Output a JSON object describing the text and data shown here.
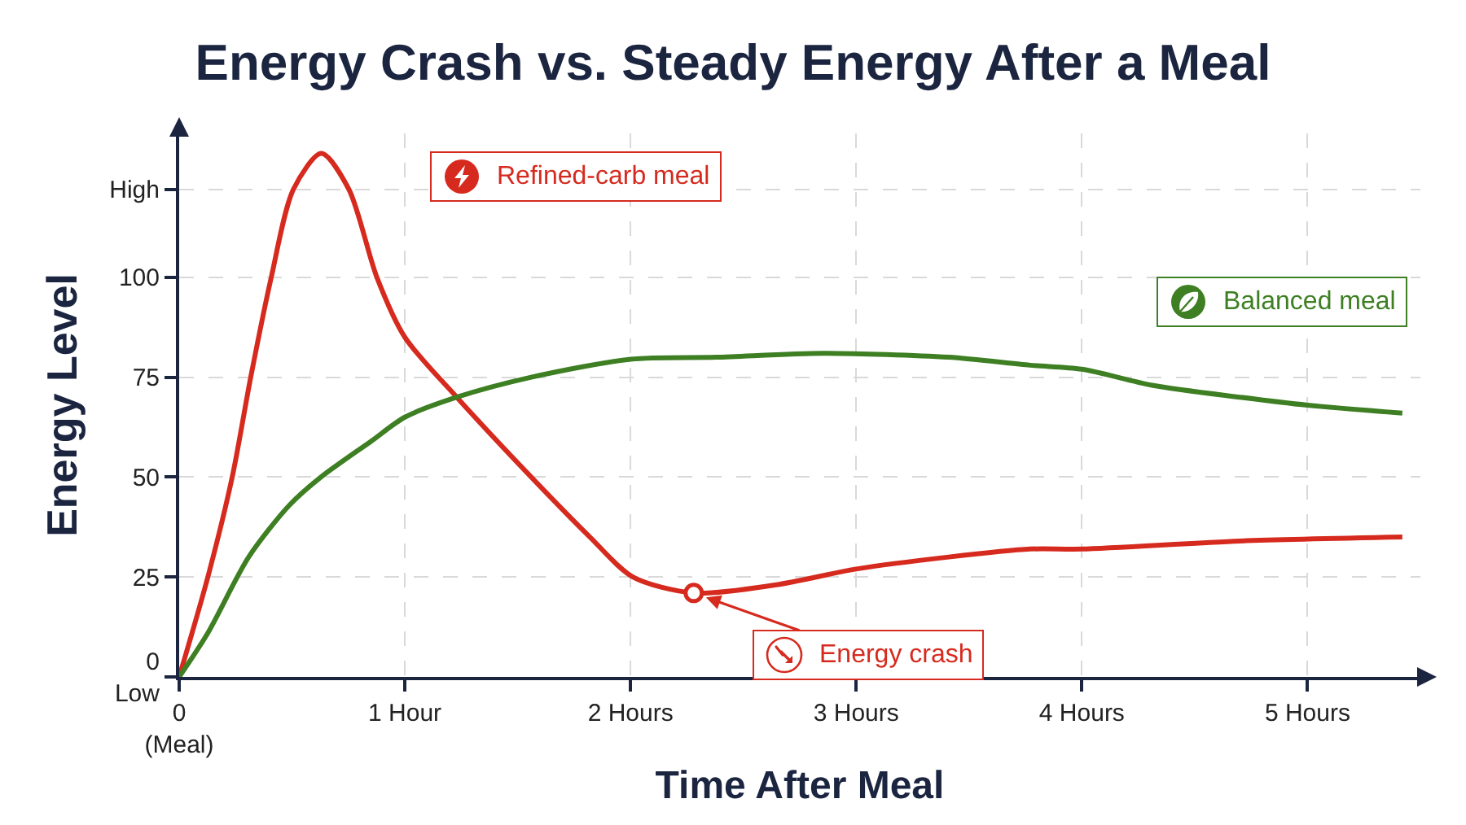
{
  "chart_data": {
    "type": "line",
    "title": "Energy Crash vs. Steady Energy After a Meal",
    "xlabel": "Time After Meal",
    "ylabel": "Energy Level",
    "xlim": [
      0,
      5.5
    ],
    "xticks": [
      {
        "value": 0,
        "label": "0\n(Meal)"
      },
      {
        "value": 1,
        "label": "1 Hour"
      },
      {
        "value": 2,
        "label": "2 Hours"
      },
      {
        "value": 3,
        "label": "3 Hours"
      },
      {
        "value": 4,
        "label": "4 Hours"
      },
      {
        "value": 5,
        "label": "5 Hours"
      }
    ],
    "ylim": [
      0,
      136
    ],
    "yticks": [
      {
        "value": 0,
        "label": "0\nLow"
      },
      25,
      50,
      75,
      100,
      {
        "value": 122,
        "label": "High"
      }
    ],
    "grid": true,
    "legend": "top",
    "marker": "none",
    "line_style": "solid",
    "series": [
      {
        "name": "Refined-carb meal",
        "color": "#d62a1e",
        "x": [
          0,
          0.127,
          0.235,
          0.317,
          0.408,
          0.506,
          0.63,
          0.752,
          0.876,
          1.0,
          1.23,
          1.56,
          1.82,
          2.01,
          2.28,
          2.64,
          3.0,
          3.41,
          3.77,
          4.0,
          4.7,
          5.42
        ],
        "values": [
          0,
          25,
          50,
          75,
          100,
          122,
          131,
          122,
          100,
          85,
          70,
          50,
          35,
          25,
          21,
          23,
          27,
          30,
          32,
          32,
          34,
          35
        ]
      },
      {
        "name": "Balanced meal",
        "color": "#3d7f22",
        "x": [
          0,
          0.127,
          0.308,
          0.489,
          0.628,
          0.851,
          1.0,
          1.23,
          1.56,
          2.0,
          2.38,
          2.85,
          3.41,
          3.77,
          4.0,
          4.31,
          4.7,
          5.0,
          5.42
        ],
        "values": [
          0,
          11,
          30,
          43,
          50,
          59,
          65,
          70,
          75,
          79.5,
          80,
          81,
          80,
          78,
          77,
          73,
          70,
          68,
          66
        ]
      }
    ],
    "annotations": [
      {
        "text": "Energy crash",
        "x": 2.28,
        "y": 21
      }
    ]
  }
}
